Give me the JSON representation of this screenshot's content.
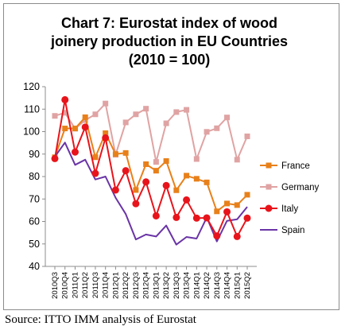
{
  "chart_data": {
    "type": "line",
    "title_lines": [
      "Chart 7: Eurostat index of wood",
      "joinery production in EU Countries",
      "(2010 = 100)"
    ],
    "x": [
      "2010Q3",
      "2010Q4",
      "2011Q1",
      "2011Q2",
      "2011Q3",
      "2011Q4",
      "2012Q1",
      "2012Q2",
      "2012Q3",
      "2012Q4",
      "2013Q1",
      "2013Q2",
      "2013Q3",
      "2013Q4",
      "2014Q1",
      "2014Q2",
      "2014Q3",
      "2014Q4",
      "2015Q1",
      "2015Q2"
    ],
    "x_axis_labels": [
      "2010Q3",
      "2010Q4",
      "2011Q1",
      "2011Q2",
      "2011Q3",
      "2011Q4",
      "2012Q1",
      "2012Q2",
      "2012Q3",
      "2012Q4",
      "2013Q1",
      "2013Q2",
      "2013Q3",
      "2013Q4",
      "2014Q1",
      "2014Q2",
      "2014Q3",
      "2014Q4",
      "2015Q1",
      "2015Q2"
    ],
    "x_tick_positions": [
      0.0,
      1.0,
      2.0,
      3.0,
      4.0,
      5.0,
      6.0,
      7.0,
      8.0,
      9.0,
      10.0,
      11.0,
      12.0,
      13.0,
      14.0,
      15.0,
      16.0,
      17.0,
      18.0,
      19.0
    ],
    "ylim": [
      40,
      120
    ],
    "yticks": [
      40,
      50,
      60,
      70,
      80,
      90,
      100,
      110,
      120
    ],
    "ytick_labels": [
      "40",
      "50",
      "60",
      "70",
      "80",
      "90",
      "100",
      "110",
      "120"
    ],
    "grid": false,
    "legend_position": "right",
    "series": [
      {
        "name": "France",
        "color": "#e8801a",
        "marker": "square",
        "x": [
          0.0,
          1.0,
          2.0,
          3.0,
          4.0,
          5.0,
          6.0,
          7.0,
          8.0,
          9.0,
          10.0,
          11.0,
          12.0,
          13.0,
          14.0,
          15.0,
          16.0,
          17.0,
          18.0,
          19.0
        ],
        "values": [
          88.6,
          101.4,
          101.4,
          106.4,
          88.6,
          99.3,
          90.0,
          90.5,
          74.0,
          85.5,
          82.6,
          86.9,
          73.9,
          80.4,
          79.0,
          77.4,
          64.5,
          68.0,
          67.3,
          71.9
        ]
      },
      {
        "name": "Germany",
        "color": "#e0a3a3",
        "marker": "square",
        "x": [
          0.0,
          1.0,
          2.0,
          3.0,
          4.0,
          5.0,
          6.0,
          7.0,
          8.0,
          9.0,
          10.0,
          11.0,
          12.0,
          13.0,
          14.0,
          15.0,
          16.0,
          17.0,
          18.0,
          19.0
        ],
        "values": [
          107.0,
          108.4,
          101.3,
          105.1,
          107.7,
          112.5,
          89.7,
          104.1,
          107.7,
          110.2,
          86.5,
          103.7,
          108.7,
          109.7,
          87.8,
          99.9,
          101.5,
          106.3,
          87.5,
          97.9
        ]
      },
      {
        "name": "Italy",
        "color": "#e8141b",
        "marker": "circle",
        "x": [
          0.0,
          1.0,
          2.0,
          3.0,
          4.0,
          5.0,
          6.0,
          7.0,
          8.0,
          9.0,
          10.0,
          11.0,
          12.0,
          13.0,
          14.0,
          15.0,
          16.0,
          17.0,
          18.0,
          19.0
        ],
        "values": [
          88.0,
          114.2,
          90.9,
          102.0,
          81.4,
          97.2,
          74.0,
          82.6,
          67.9,
          77.6,
          62.5,
          76.0,
          61.8,
          69.6,
          61.5,
          61.6,
          53.6,
          64.3,
          53.3,
          61.5
        ]
      },
      {
        "name": "Spain",
        "color": "#6a34a6",
        "marker": "none",
        "x": [
          0.0,
          1.0,
          2.0,
          3.0,
          4.0,
          5.0,
          6.0,
          7.0,
          8.0,
          9.0,
          10.0,
          11.0,
          12.0,
          13.0,
          14.0,
          15.0,
          16.0,
          17.0,
          18.0,
          19.0
        ],
        "values": [
          88.8,
          95.1,
          85.2,
          87.5,
          78.7,
          80.0,
          70.6,
          63.3,
          52.0,
          54.2,
          53.3,
          58.2,
          49.7,
          53.1,
          52.4,
          61.8,
          51.1,
          60.3,
          61.0,
          66.5
        ]
      }
    ]
  },
  "source_text": "Source: ITTO IMM analysis of Eurostat"
}
